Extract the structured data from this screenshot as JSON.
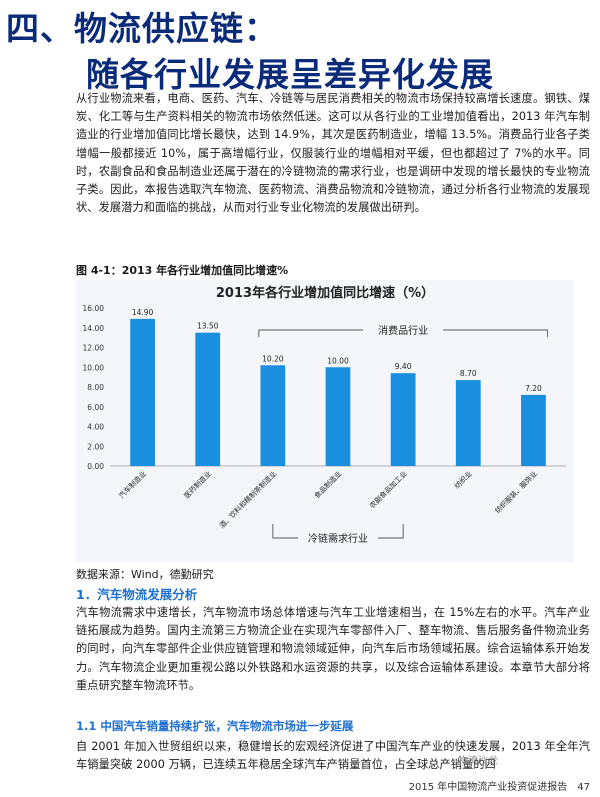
{
  "heading": {
    "line1": "四、物流供应链：",
    "line2": "随各行业发展呈差异化发展"
  },
  "paragraph1": "从行业物流来看，电商、医药、汽车、冷链等与居民消费相关的物流市场保持较高增长速度。钢铁、煤炭、化工等与生产资料相关的物流市场依然低迷。这可以从各行业的工业增加值看出，2013 年汽车制造业的行业增加值同比增长最快，达到 14.9%，其次是医药制造业，增幅 13.5%。消费品行业各子类增幅一般都接近 10%，属于高增幅行业，仅服装行业的增幅相对平缓，但也都超过了 7%的水平。同时，农副食品和食品制造业还属于潜在的冷链物流的需求行业，也是调研中发现的增长最快的专业物流子类。因此，本报告选取汽车物流、医药物流、消费品物流和冷链物流，通过分析各行业物流的发展现状、发展潜力和面临的挑战，从而对行业专业化物流的发展做出研判。",
  "figure_caption": "图 4-1：2013 年各行业增加值同比增速%",
  "chart_data": {
    "type": "bar",
    "title": "2013年各行业增加值同比增速（%）",
    "categories": [
      "汽车制造业",
      "医药制造业",
      "酒、饮料和精制茶制造业",
      "食品制造业",
      "农副食品加工业",
      "纺织业",
      "纺织服装、服饰业"
    ],
    "values": [
      14.9,
      13.5,
      10.2,
      10.0,
      9.4,
      8.7,
      7.2
    ],
    "value_labels": [
      "14.90",
      "13.50",
      "10.20",
      "10.00",
      "9.40",
      "8.70",
      "7.20"
    ],
    "yticks": [
      "0.00",
      "2.00",
      "4.00",
      "6.00",
      "8.00",
      "10.00",
      "12.00",
      "14.00",
      "16.00"
    ],
    "ylim": [
      0,
      16
    ],
    "bar_color": "#1a8fe0",
    "bracket_top_label": "消费品行业",
    "bracket_bottom_label": "冷链需求行业"
  },
  "source": "数据来源：Wind，德勤研究",
  "section1_title": "1．汽车物流发展分析",
  "paragraph2": "汽车物流需求中速增长，汽车物流市场总体增速与汽车工业增速相当，在 15%左右的水平。汽车产业链拓展成为趋势。国内主流第三方物流企业在实现汽车零部件入厂、整车物流、售后服务备件物流业务的同时，向汽车零部件企业供应链管理和物流领域延伸，向汽车后市场领域拓展。综合运输体系开始发力。汽车物流企业更加重视公路以外铁路和水运资源的共享，以及综合运输体系建设。本章节大部分将重点研究整车物流环节。",
  "section11_title": "1.1 中国汽车销量持续扩张，汽车物流市场进一步延展",
  "paragraph3": "自 2001 年加入世贸组织以来，稳健增长的宏观经济促进了中国汽车产业的快速发展，2013 年全年汽车销量突破 2000 万辆，已连续五年稳居全球汽车产销量首位，占全球总产销量的四",
  "footer": {
    "report": "2015 年中国物流产业投资促进报告",
    "page": "47"
  },
  "watermark": "物流沙龙"
}
